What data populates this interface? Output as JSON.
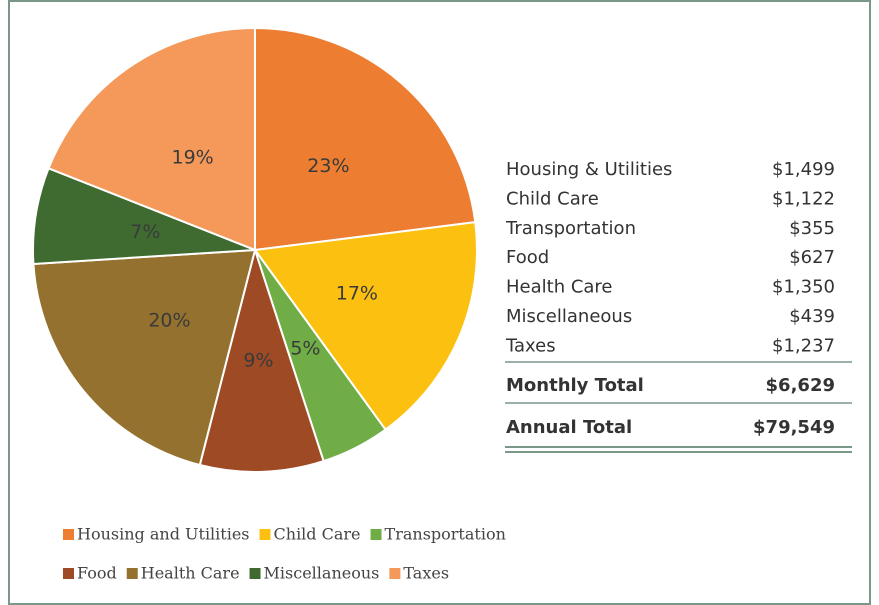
{
  "chart_data": {
    "type": "pie",
    "categories": [
      "Housing and Utilities",
      "Child Care",
      "Transportation",
      "Food",
      "Health Care",
      "Miscellaneous",
      "Taxes"
    ],
    "values": [
      23,
      17,
      5,
      9,
      20,
      7,
      19
    ],
    "value_labels": [
      "23%",
      "17%",
      "5%",
      "9%",
      "20%",
      "7%",
      "19%"
    ],
    "colors": [
      "#ed7d31",
      "#fcc010",
      "#70ad47",
      "#9e4a24",
      "#94712e",
      "#3f6b30",
      "#f4995a"
    ]
  },
  "table": {
    "rows": [
      [
        "Housing & Utilities",
        "$1,499"
      ],
      [
        "Child Care",
        "$1,122"
      ],
      [
        "Transportation",
        "$355"
      ],
      [
        "Food",
        "$627"
      ],
      [
        "Health Care",
        "$1,350"
      ],
      [
        "Miscellaneous",
        "$439"
      ],
      [
        "Taxes",
        "$1,237"
      ]
    ],
    "totals": [
      [
        "Monthly Total",
        "$6,629"
      ],
      [
        "Annual Total",
        "$79,549"
      ]
    ]
  }
}
